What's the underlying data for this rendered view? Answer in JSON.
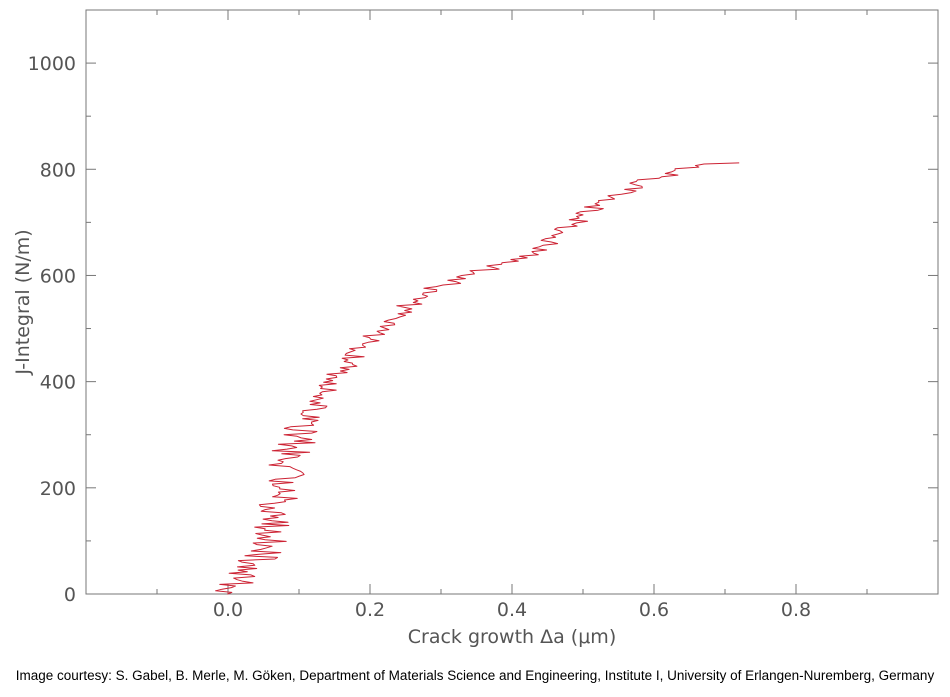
{
  "chart_data": {
    "type": "line",
    "title": "",
    "xlabel": "Crack growth Δa (μm)",
    "ylabel": "J-Integral (N/m)",
    "xlim": [
      -0.2,
      1.0
    ],
    "ylim": [
      0,
      1100
    ],
    "x_ticks": [
      0.0,
      0.2,
      0.4,
      0.6,
      0.8
    ],
    "x_tick_labels": [
      "0.0",
      "0.2",
      "0.4",
      "0.6",
      "0.8"
    ],
    "y_ticks": [
      0,
      200,
      400,
      600,
      800,
      1000
    ],
    "y_tick_labels": [
      "0",
      "200",
      "400",
      "600",
      "800",
      "1000"
    ],
    "grid": false,
    "line_color": "#cc2233",
    "series": [
      {
        "x": [
          0.0,
          0.02,
          0.05,
          0.06,
          0.07,
          0.08,
          0.09,
          0.1,
          0.12,
          0.14,
          0.16,
          0.18,
          0.2,
          0.22,
          0.25,
          0.28,
          0.32,
          0.36,
          0.4,
          0.44,
          0.47,
          0.5,
          0.53,
          0.56,
          0.59,
          0.62,
          0.64,
          0.66,
          0.72
        ],
        "y": [
          0,
          30,
          80,
          120,
          170,
          220,
          270,
          300,
          340,
          380,
          420,
          450,
          480,
          510,
          540,
          570,
          590,
          610,
          625,
          650,
          680,
          710,
          740,
          760,
          780,
          790,
          800,
          810,
          812
        ]
      }
    ]
  },
  "credit": "Image courtesy: S. Gabel, B. Merle, M. Göken, Department of Materials Science and Engineering, Institute I, University of Erlangen-Nuremberg, Germany"
}
